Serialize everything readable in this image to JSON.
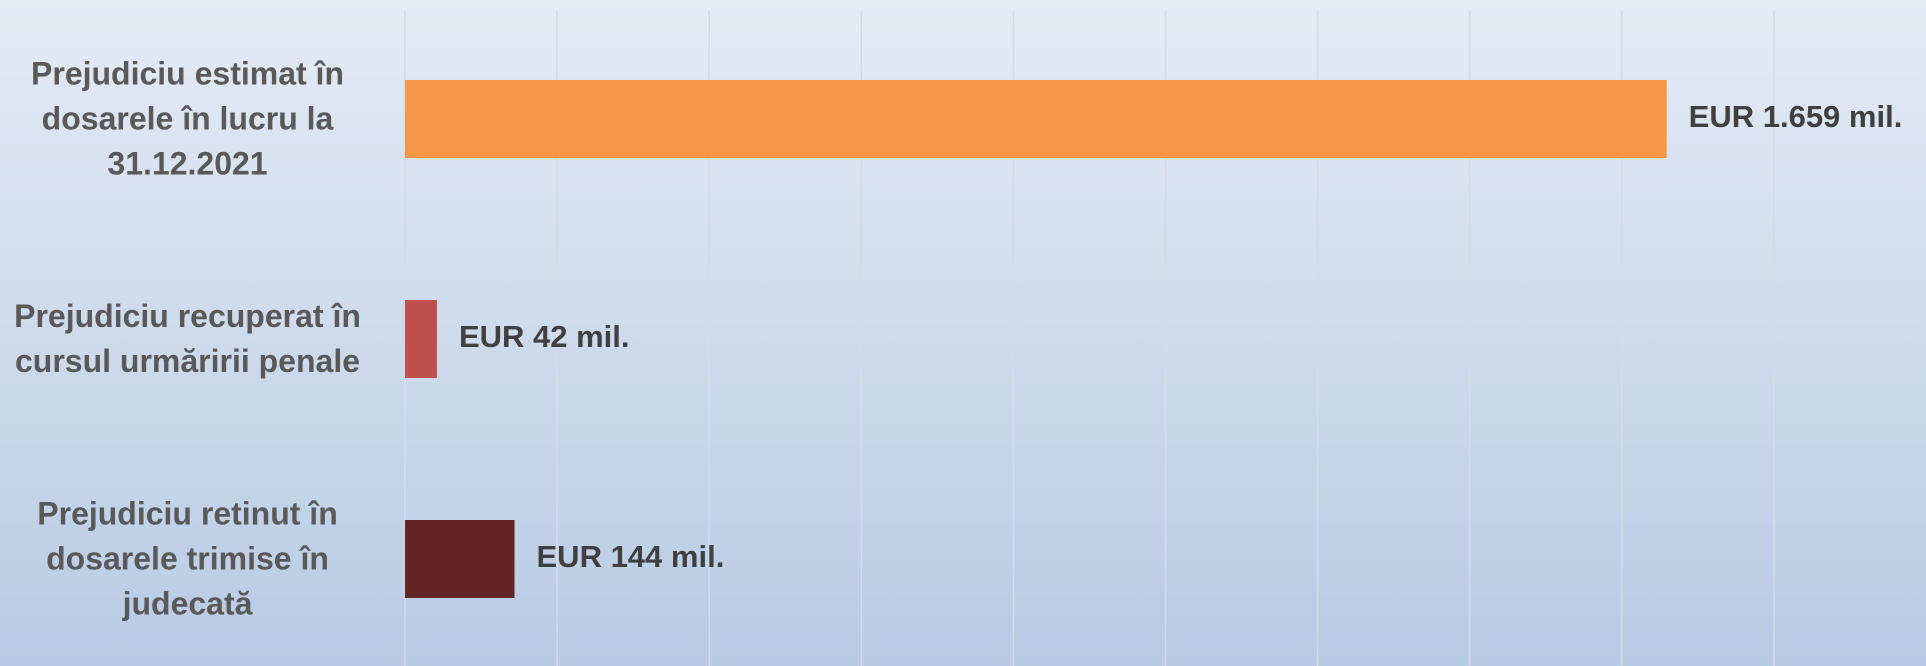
{
  "chart_data": {
    "type": "bar",
    "orientation": "horizontal",
    "categories": [
      "Prejudiciu estimat în dosarele în lucru la 31.12.2021",
      "Prejudiciu recuperat în cursul urmăririi penale",
      "Prejudiciu retinut în dosarele trimise în judecată"
    ],
    "values": [
      1659,
      42,
      144
    ],
    "value_labels": [
      "EUR 1.659 mil.",
      "EUR 42 mil.",
      "EUR 144 mil."
    ],
    "colors": [
      "#f79646",
      "#c0504d",
      "#632423"
    ],
    "xlim": [
      0,
      2000
    ],
    "xticks": [
      0,
      200,
      400,
      600,
      800,
      1000,
      1200,
      1400,
      1600,
      1800
    ],
    "grid": true
  }
}
